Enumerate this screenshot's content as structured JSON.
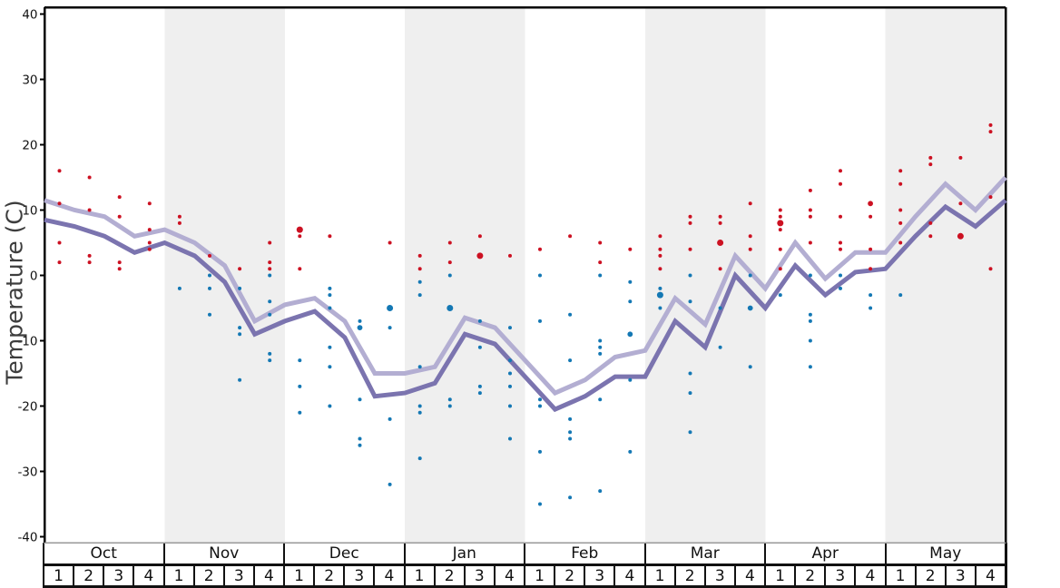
{
  "chart_data": {
    "type": "line",
    "title": "",
    "ylabel": "Temperature (C)",
    "ylim": [
      -41,
      41
    ],
    "yticks": [
      40,
      30,
      20,
      10,
      0,
      -10,
      -20,
      -30,
      -40
    ],
    "grid": false,
    "months": [
      {
        "label": "Oct",
        "shaded": false
      },
      {
        "label": "Nov",
        "shaded": true
      },
      {
        "label": "Dec",
        "shaded": false
      },
      {
        "label": "Jan",
        "shaded": true
      },
      {
        "label": "Feb",
        "shaded": false
      },
      {
        "label": "Mar",
        "shaded": true
      },
      {
        "label": "Apr",
        "shaded": false
      },
      {
        "label": "May",
        "shaded": true
      }
    ],
    "week_labels": [
      "1",
      "2",
      "3",
      "4"
    ],
    "shaded_band_color": "#efefef",
    "series": [
      {
        "name": "average-max-temperature-line",
        "color": "#b3aed2",
        "weekly_values": [
          11.5,
          10,
          9,
          6,
          7,
          5,
          1.5,
          -7,
          -4.5,
          -3.5,
          -7,
          -15,
          -15,
          -14,
          -6.5,
          -8,
          -13,
          -18,
          -16,
          -12.5,
          -11.5,
          -3.5,
          -7.5,
          3,
          -2,
          5,
          -0.5,
          3.5,
          3.5,
          9,
          14,
          10,
          15
        ]
      },
      {
        "name": "average-min-temperature-line",
        "color": "#7b74af",
        "weekly_values": [
          8.5,
          7.5,
          6,
          3.5,
          5,
          3,
          -1,
          -9,
          -7,
          -5.5,
          -9.5,
          -18.5,
          -18,
          -16.5,
          -9,
          -10.5,
          -15.5,
          -20.5,
          -18.5,
          -15.5,
          -15.5,
          -7,
          -11,
          0,
          -5,
          1.5,
          -3,
          0.5,
          1,
          6,
          10.5,
          7.5,
          11.5
        ]
      }
    ],
    "scatter_series": [
      {
        "name": "max-temperature-observations",
        "color": "#cc1122",
        "points_week_value_size": [
          [
            1,
            16
          ],
          [
            1,
            11
          ],
          [
            1,
            5
          ],
          [
            1,
            2
          ],
          [
            2,
            15
          ],
          [
            2,
            10
          ],
          [
            2,
            3
          ],
          [
            2,
            2
          ],
          [
            3,
            12
          ],
          [
            3,
            9
          ],
          [
            3,
            2
          ],
          [
            3,
            1
          ],
          [
            4,
            11
          ],
          [
            4,
            7
          ],
          [
            4,
            5
          ],
          [
            4,
            4
          ],
          [
            5,
            9
          ],
          [
            5,
            8
          ],
          [
            6,
            3
          ],
          [
            7,
            1
          ],
          [
            8,
            5
          ],
          [
            8,
            2
          ],
          [
            8,
            1
          ],
          [
            9,
            7,
            "l"
          ],
          [
            9,
            6
          ],
          [
            9,
            1
          ],
          [
            10,
            6
          ],
          [
            12,
            5
          ],
          [
            13,
            3
          ],
          [
            13,
            1
          ],
          [
            14,
            5
          ],
          [
            14,
            2
          ],
          [
            15,
            6
          ],
          [
            15,
            3,
            "l"
          ],
          [
            16,
            3
          ],
          [
            17,
            4
          ],
          [
            18,
            6
          ],
          [
            19,
            5
          ],
          [
            19,
            2
          ],
          [
            20,
            4
          ],
          [
            21,
            6
          ],
          [
            21,
            4
          ],
          [
            21,
            3
          ],
          [
            21,
            1
          ],
          [
            22,
            9
          ],
          [
            22,
            8
          ],
          [
            22,
            4
          ],
          [
            23,
            9
          ],
          [
            23,
            8
          ],
          [
            23,
            5,
            "l"
          ],
          [
            23,
            1
          ],
          [
            24,
            11
          ],
          [
            24,
            6
          ],
          [
            24,
            4
          ],
          [
            25,
            10
          ],
          [
            25,
            9
          ],
          [
            25,
            8,
            "l"
          ],
          [
            25,
            7
          ],
          [
            25,
            4
          ],
          [
            25,
            1
          ],
          [
            26,
            13
          ],
          [
            26,
            10
          ],
          [
            26,
            9
          ],
          [
            26,
            5
          ],
          [
            27,
            16
          ],
          [
            27,
            14
          ],
          [
            27,
            9
          ],
          [
            27,
            5
          ],
          [
            27,
            4
          ],
          [
            28,
            11,
            "m"
          ],
          [
            28,
            9
          ],
          [
            28,
            4
          ],
          [
            28,
            1
          ],
          [
            29,
            16
          ],
          [
            29,
            14
          ],
          [
            29,
            10
          ],
          [
            29,
            8
          ],
          [
            29,
            5
          ],
          [
            30,
            18
          ],
          [
            30,
            17
          ],
          [
            30,
            8
          ],
          [
            30,
            6
          ],
          [
            31,
            18
          ],
          [
            31,
            11
          ],
          [
            31,
            6,
            "l"
          ],
          [
            32,
            23
          ],
          [
            32,
            22
          ],
          [
            32,
            12
          ],
          [
            32,
            1
          ]
        ]
      },
      {
        "name": "min-temperature-observations",
        "color": "#1478b4",
        "points_week_value_size": [
          [
            5,
            -2
          ],
          [
            6,
            0
          ],
          [
            6,
            -2
          ],
          [
            6,
            -6
          ],
          [
            7,
            -2
          ],
          [
            7,
            -8
          ],
          [
            7,
            -9
          ],
          [
            7,
            -16
          ],
          [
            8,
            0
          ],
          [
            8,
            -4
          ],
          [
            8,
            -6
          ],
          [
            8,
            -12
          ],
          [
            8,
            -13
          ],
          [
            9,
            -13
          ],
          [
            9,
            -17
          ],
          [
            9,
            -21
          ],
          [
            10,
            -2
          ],
          [
            10,
            -3
          ],
          [
            10,
            -5
          ],
          [
            10,
            -11
          ],
          [
            10,
            -14
          ],
          [
            10,
            -20
          ],
          [
            11,
            -7
          ],
          [
            11,
            -8,
            "m"
          ],
          [
            11,
            -19
          ],
          [
            11,
            -25
          ],
          [
            11,
            -26
          ],
          [
            12,
            -5,
            "l"
          ],
          [
            12,
            -8
          ],
          [
            12,
            -22
          ],
          [
            12,
            -32
          ],
          [
            13,
            -1
          ],
          [
            13,
            -3
          ],
          [
            13,
            -14
          ],
          [
            13,
            -20
          ],
          [
            13,
            -21
          ],
          [
            13,
            -28
          ],
          [
            14,
            0
          ],
          [
            14,
            -5,
            "l"
          ],
          [
            14,
            -19
          ],
          [
            14,
            -20
          ],
          [
            15,
            -7
          ],
          [
            15,
            -11
          ],
          [
            15,
            -17
          ],
          [
            15,
            -18
          ],
          [
            16,
            -8
          ],
          [
            16,
            -13
          ],
          [
            16,
            -15
          ],
          [
            16,
            -17
          ],
          [
            16,
            -20
          ],
          [
            16,
            -25
          ],
          [
            17,
            0
          ],
          [
            17,
            -7
          ],
          [
            17,
            -19
          ],
          [
            17,
            -20
          ],
          [
            17,
            -27
          ],
          [
            17,
            -35
          ],
          [
            18,
            -6
          ],
          [
            18,
            -13
          ],
          [
            18,
            -22
          ],
          [
            18,
            -24
          ],
          [
            18,
            -25
          ],
          [
            18,
            -34
          ],
          [
            19,
            0
          ],
          [
            19,
            -10
          ],
          [
            19,
            -11
          ],
          [
            19,
            -12
          ],
          [
            19,
            -19
          ],
          [
            19,
            -33
          ],
          [
            20,
            -1
          ],
          [
            20,
            -4
          ],
          [
            20,
            -9,
            "m"
          ],
          [
            20,
            -16
          ],
          [
            20,
            -27
          ],
          [
            21,
            -2
          ],
          [
            21,
            -3,
            "l"
          ],
          [
            21,
            -5
          ],
          [
            22,
            0
          ],
          [
            22,
            -4
          ],
          [
            22,
            -15
          ],
          [
            22,
            -18
          ],
          [
            22,
            -24
          ],
          [
            23,
            -5
          ],
          [
            23,
            -11
          ],
          [
            24,
            0
          ],
          [
            24,
            -5,
            "m"
          ],
          [
            24,
            -14
          ],
          [
            25,
            -3
          ],
          [
            26,
            0
          ],
          [
            26,
            -6
          ],
          [
            26,
            -7
          ],
          [
            26,
            -10
          ],
          [
            26,
            -14
          ],
          [
            27,
            0
          ],
          [
            27,
            -2
          ],
          [
            28,
            -3
          ],
          [
            28,
            -5
          ],
          [
            29,
            -3
          ]
        ]
      }
    ],
    "axis_colors": {
      "spine": "#000000",
      "table_border": "#111111",
      "thin_rule": "#999999",
      "tick_text": "#111111"
    }
  }
}
